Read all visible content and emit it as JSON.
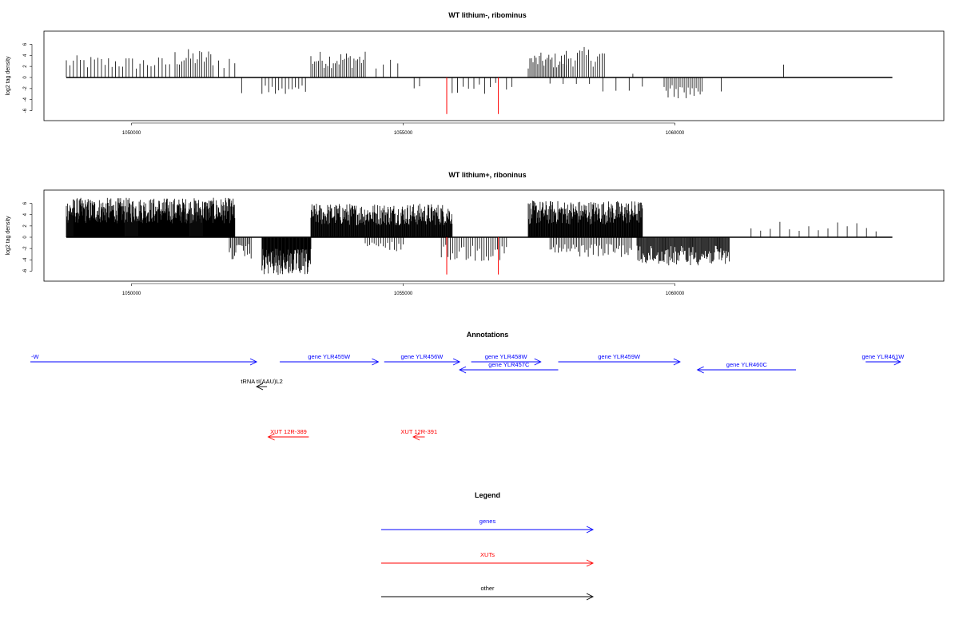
{
  "chart_data": [
    {
      "type": "bar",
      "title": "WT lithium-, ribominus",
      "ylabel": "log2 tag density",
      "xlim": [
        1048800,
        1064300
      ],
      "ylim": [
        -7,
        8
      ],
      "x_ticks": [
        1050000,
        1055000,
        1060000
      ],
      "y_ticks": [
        -6,
        -4,
        -2,
        0,
        2,
        4,
        6
      ],
      "highlight_color": "#ff0000",
      "bar_color": "#000000",
      "track_start": 1048800,
      "track_end": 1064000,
      "forward_clusters": [
        {
          "start": 1048800,
          "end": 1049900,
          "count": 18,
          "ymax": 4.0
        },
        {
          "start": 1049950,
          "end": 1050700,
          "count": 12,
          "ymax": 3.8
        },
        {
          "start": 1050800,
          "end": 1051500,
          "count": 18,
          "ymax": 5.2
        },
        {
          "start": 1051600,
          "end": 1051900,
          "count": 4,
          "ymax": 4.2
        },
        {
          "start": 1053300,
          "end": 1054300,
          "count": 30,
          "ymax": 4.8
        },
        {
          "start": 1054500,
          "end": 1054900,
          "count": 4,
          "ymax": 3.4
        },
        {
          "start": 1057300,
          "end": 1058000,
          "count": 25,
          "ymax": 4.5
        },
        {
          "start": 1058000,
          "end": 1058700,
          "count": 18,
          "ymax": 5.5
        },
        {
          "start": 1059200,
          "end": 1059250,
          "count": 1,
          "ymax": 1.0
        },
        {
          "start": 1061990,
          "end": 1062010,
          "count": 1,
          "ymax": 3.0
        }
      ],
      "reverse_clusters": [
        {
          "start": 1052000,
          "end": 1052050,
          "count": 1,
          "ymin": -3.0
        },
        {
          "start": 1052400,
          "end": 1053200,
          "count": 14,
          "ymin": -3.8
        },
        {
          "start": 1055200,
          "end": 1055300,
          "count": 2,
          "ymin": -2.0
        },
        {
          "start": 1055800,
          "end": 1056700,
          "count": 10,
          "ymin": -3.2
        },
        {
          "start": 1056900,
          "end": 1057000,
          "count": 2,
          "ymin": -3.0
        },
        {
          "start": 1057700,
          "end": 1059400,
          "count": 8,
          "ymin": -3.0
        },
        {
          "start": 1059800,
          "end": 1060500,
          "count": 20,
          "ymin": -3.8
        },
        {
          "start": 1060800,
          "end": 1060900,
          "count": 1,
          "ymin": -3.2
        }
      ],
      "highlight_bars": [
        {
          "x": 1055800,
          "y": -6.6
        },
        {
          "x": 1056750,
          "y": -6.6
        }
      ]
    },
    {
      "type": "bar",
      "title": "WT lithium+, riboninus",
      "ylabel": "log2 tag density",
      "xlim": [
        1048800,
        1064300
      ],
      "ylim": [
        -7,
        8
      ],
      "x_ticks": [
        1050000,
        1055000,
        1060000
      ],
      "y_ticks": [
        -6,
        -4,
        -2,
        0,
        2,
        4,
        6
      ],
      "highlight_color": "#ff0000",
      "bar_color": "#000000",
      "track_start": 1048800,
      "track_end": 1064000,
      "forward_clusters": [
        {
          "start": 1048800,
          "end": 1051900,
          "count": 420,
          "ymax": 7.0
        },
        {
          "start": 1053300,
          "end": 1055900,
          "count": 280,
          "ymax": 6.0
        },
        {
          "start": 1057300,
          "end": 1059400,
          "count": 240,
          "ymax": 6.5
        },
        {
          "start": 1061400,
          "end": 1063700,
          "count": 14,
          "ymax": 2.8
        }
      ],
      "reverse_clusters": [
        {
          "start": 1051800,
          "end": 1052200,
          "count": 18,
          "ymin": -4.0
        },
        {
          "start": 1052400,
          "end": 1053300,
          "count": 110,
          "ymin": -6.8
        },
        {
          "start": 1054300,
          "end": 1055000,
          "count": 18,
          "ymin": -2.5
        },
        {
          "start": 1055700,
          "end": 1056900,
          "count": 30,
          "ymin": -4.2
        },
        {
          "start": 1057700,
          "end": 1059200,
          "count": 50,
          "ymin": -3.5
        },
        {
          "start": 1059300,
          "end": 1061000,
          "count": 120,
          "ymin": -5.0
        }
      ],
      "highlight_bars": [
        {
          "x": 1055800,
          "y": -6.6
        },
        {
          "x": 1056750,
          "y": -6.6
        }
      ]
    }
  ],
  "annotations": {
    "title": "Annotations",
    "xlim": [
      1048800,
      1064300
    ],
    "features": [
      {
        "label": "-W",
        "start": 1048800,
        "end": 1052700,
        "strand": "+",
        "kind": "gene",
        "row": 0
      },
      {
        "label": "gene YLR455W",
        "start": 1053100,
        "end": 1054800,
        "strand": "+",
        "kind": "gene",
        "row": 0
      },
      {
        "label": "gene YLR456W",
        "start": 1054900,
        "end": 1056200,
        "strand": "+",
        "kind": "gene",
        "row": 0
      },
      {
        "label": "gene YLR458W",
        "start": 1056400,
        "end": 1057600,
        "strand": "+",
        "kind": "gene",
        "row": 0
      },
      {
        "label": "gene YLR457C",
        "start": 1056200,
        "end": 1057900,
        "strand": "-",
        "kind": "gene",
        "row": 1
      },
      {
        "label": "gene YLR459W",
        "start": 1057900,
        "end": 1060000,
        "strand": "+",
        "kind": "gene",
        "row": 0
      },
      {
        "label": "gene YLR460C",
        "start": 1060300,
        "end": 1062000,
        "strand": "-",
        "kind": "gene",
        "row": 1
      },
      {
        "label": "gene YLR461W",
        "start": 1063200,
        "end": 1063800,
        "strand": "+",
        "kind": "gene",
        "row": 0
      },
      {
        "label": "tRNA tI(AAU)L2",
        "start": 1052700,
        "end": 1052880,
        "strand": "-",
        "kind": "other",
        "row": 2
      },
      {
        "label": "XUT 12R-389",
        "start": 1052900,
        "end": 1053600,
        "strand": "-",
        "kind": "xut",
        "row": 3
      },
      {
        "label": "XUT 12R-391",
        "start": 1055400,
        "end": 1055600,
        "strand": "-",
        "kind": "xut",
        "row": 3
      }
    ]
  },
  "legend": {
    "title": "Legend",
    "entries": [
      {
        "label": "genes",
        "color": "#0000ff"
      },
      {
        "label": "XUTs",
        "color": "#ff0000"
      },
      {
        "label": "other",
        "color": "#000000"
      }
    ]
  },
  "colors": {
    "gene": "#0000ff",
    "xut": "#ff0000",
    "other": "#000000"
  }
}
